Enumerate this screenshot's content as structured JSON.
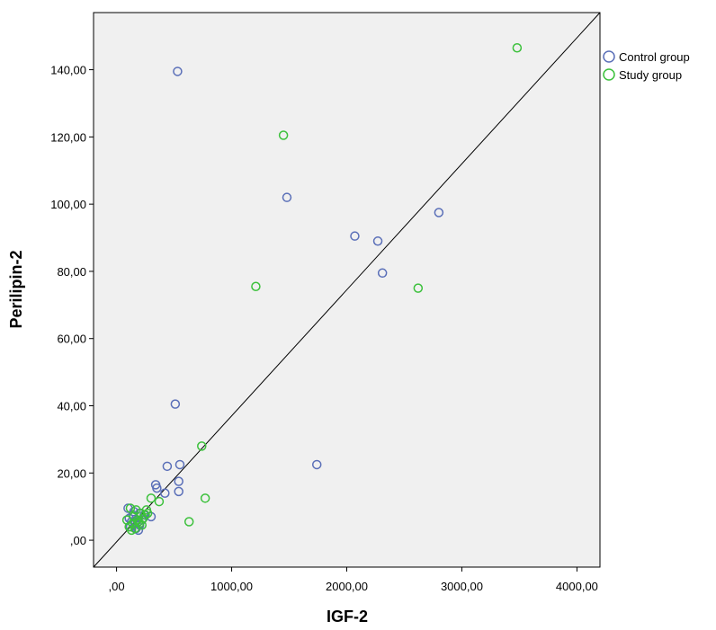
{
  "chart_data": {
    "type": "scatter",
    "title": "",
    "xlabel": "IGF-2",
    "ylabel": "Perilipin-2",
    "xlim": [
      -200,
      4200
    ],
    "ylim": [
      -8,
      157
    ],
    "x_ticks": [
      0,
      1000,
      2000,
      3000,
      4000
    ],
    "x_tick_labels": [
      ",00",
      "1000,00",
      "2000,00",
      "3000,00",
      "4000,00"
    ],
    "y_ticks": [
      0,
      20,
      40,
      60,
      80,
      100,
      120,
      140
    ],
    "y_tick_labels": [
      ",00",
      "20,00",
      "40,00",
      "60,00",
      "80,00",
      "100,00",
      "120,00",
      "140,00"
    ],
    "grid": false,
    "background": "#f0f0f0",
    "legend": "top-right",
    "reference_line": {
      "from": [
        -200,
        -8
      ],
      "to": [
        4200,
        157
      ]
    },
    "series": [
      {
        "name": "Control group",
        "color": "#5a6fb8",
        "points": [
          [
            530,
            139.5
          ],
          [
            1480,
            102
          ],
          [
            2800,
            97.5
          ],
          [
            2070,
            90.5
          ],
          [
            2270,
            89
          ],
          [
            2310,
            79.5
          ],
          [
            510,
            40.5
          ],
          [
            1740,
            22.5
          ],
          [
            550,
            22.5
          ],
          [
            440,
            22
          ],
          [
            540,
            17.5
          ],
          [
            340,
            16.5
          ],
          [
            350,
            15.5
          ],
          [
            540,
            14.5
          ],
          [
            420,
            14
          ],
          [
            100,
            9.5
          ],
          [
            150,
            8.5
          ],
          [
            200,
            8
          ],
          [
            140,
            7.5
          ],
          [
            240,
            7.5
          ],
          [
            300,
            7
          ],
          [
            110,
            6.5
          ],
          [
            180,
            6
          ],
          [
            220,
            6
          ],
          [
            130,
            5.5
          ],
          [
            160,
            5
          ],
          [
            200,
            4.5
          ],
          [
            120,
            4
          ],
          [
            170,
            3.5
          ],
          [
            190,
            3
          ]
        ]
      },
      {
        "name": "Study group",
        "color": "#3cc13c",
        "points": [
          [
            3480,
            146.5
          ],
          [
            1450,
            120.5
          ],
          [
            1210,
            75.5
          ],
          [
            2620,
            75
          ],
          [
            740,
            28
          ],
          [
            300,
            12.5
          ],
          [
            770,
            12.5
          ],
          [
            370,
            11.5
          ],
          [
            630,
            5.5
          ],
          [
            90,
            6
          ],
          [
            120,
            9.5
          ],
          [
            170,
            9
          ],
          [
            260,
            9
          ],
          [
            210,
            8
          ],
          [
            150,
            7
          ],
          [
            250,
            7.5
          ],
          [
            180,
            6
          ],
          [
            230,
            6.5
          ],
          [
            140,
            5
          ],
          [
            200,
            5
          ],
          [
            110,
            4
          ],
          [
            160,
            3.5
          ],
          [
            220,
            4.5
          ],
          [
            130,
            3
          ],
          [
            270,
            8
          ],
          [
            190,
            5.5
          ]
        ]
      }
    ]
  }
}
